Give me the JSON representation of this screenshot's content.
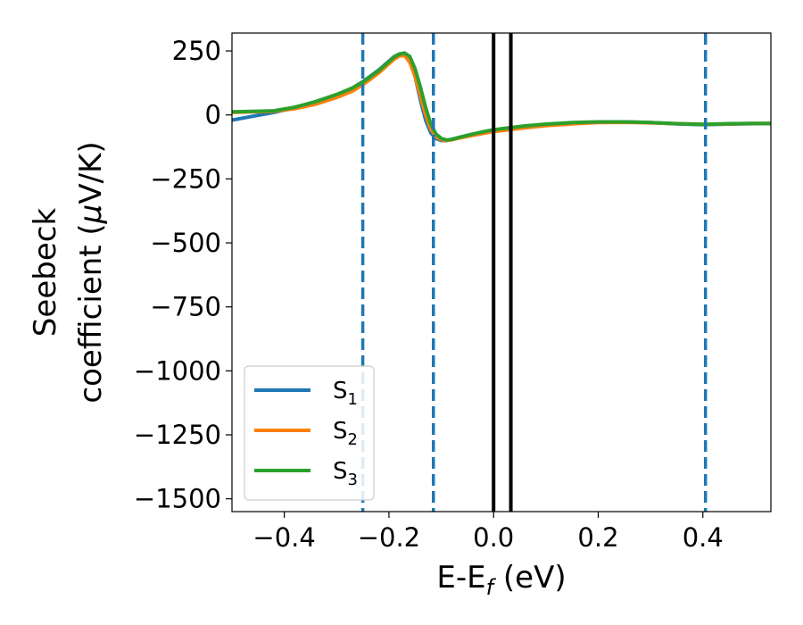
{
  "chart_data": {
    "type": "line",
    "xlabel": {
      "main": "E-E",
      "sub": "f",
      "unit": " (eV)"
    },
    "ylabel": {
      "line1": "Seebeck",
      "line2_pre": "coefficient  (",
      "line2_mu": "μ",
      "line2_post": "V/K)"
    },
    "xlim": [
      -0.5,
      0.53
    ],
    "ylim": [
      -1550,
      320
    ],
    "xticks": [
      -0.4,
      -0.2,
      0.0,
      0.2,
      0.4
    ],
    "xtick_labels": [
      "−0.4",
      "−0.2",
      "0.0",
      "0.2",
      "0.4"
    ],
    "yticks": [
      250,
      0,
      -250,
      -500,
      -750,
      -1000,
      -1250,
      -1500
    ],
    "ytick_labels": [
      "250",
      "0",
      "−250",
      "−500",
      "−750",
      "−1000",
      "−1250",
      "−1500"
    ],
    "grid": false,
    "legend_position": "lower-left",
    "series": [
      {
        "name": "S",
        "sub": "1",
        "color": "#1f77b4",
        "points": [
          [
            -0.5,
            -20
          ],
          [
            -0.46,
            -5
          ],
          [
            -0.42,
            10
          ],
          [
            -0.38,
            28
          ],
          [
            -0.34,
            50
          ],
          [
            -0.3,
            78
          ],
          [
            -0.27,
            105
          ],
          [
            -0.25,
            130
          ],
          [
            -0.22,
            175
          ],
          [
            -0.2,
            210
          ],
          [
            -0.19,
            228
          ],
          [
            -0.18,
            238
          ],
          [
            -0.17,
            240
          ],
          [
            -0.16,
            215
          ],
          [
            -0.15,
            150
          ],
          [
            -0.14,
            60
          ],
          [
            -0.13,
            -20
          ],
          [
            -0.12,
            -70
          ],
          [
            -0.11,
            -92
          ],
          [
            -0.1,
            -100
          ],
          [
            -0.09,
            -100
          ],
          [
            -0.08,
            -95
          ],
          [
            -0.06,
            -85
          ],
          [
            -0.04,
            -75
          ],
          [
            -0.02,
            -68
          ],
          [
            0.0,
            -60
          ],
          [
            0.03,
            -52
          ],
          [
            0.06,
            -45
          ],
          [
            0.1,
            -38
          ],
          [
            0.15,
            -32
          ],
          [
            0.2,
            -28
          ],
          [
            0.25,
            -27
          ],
          [
            0.3,
            -30
          ],
          [
            0.35,
            -35
          ],
          [
            0.4,
            -38
          ],
          [
            0.45,
            -36
          ],
          [
            0.5,
            -34
          ],
          [
            0.53,
            -34
          ]
        ]
      },
      {
        "name": "S",
        "sub": "2",
        "color": "#ff7f0e",
        "points": [
          [
            -0.5,
            10
          ],
          [
            -0.46,
            12
          ],
          [
            -0.42,
            14
          ],
          [
            -0.38,
            24
          ],
          [
            -0.34,
            42
          ],
          [
            -0.3,
            68
          ],
          [
            -0.27,
            93
          ],
          [
            -0.25,
            118
          ],
          [
            -0.22,
            163
          ],
          [
            -0.2,
            200
          ],
          [
            -0.19,
            218
          ],
          [
            -0.18,
            230
          ],
          [
            -0.17,
            232
          ],
          [
            -0.16,
            205
          ],
          [
            -0.15,
            150
          ],
          [
            -0.14,
            75
          ],
          [
            -0.13,
            0
          ],
          [
            -0.12,
            -55
          ],
          [
            -0.11,
            -85
          ],
          [
            -0.1,
            -97
          ],
          [
            -0.09,
            -100
          ],
          [
            -0.08,
            -97
          ],
          [
            -0.06,
            -88
          ],
          [
            -0.04,
            -80
          ],
          [
            -0.02,
            -72
          ],
          [
            0.0,
            -65
          ],
          [
            0.03,
            -58
          ],
          [
            0.06,
            -50
          ],
          [
            0.1,
            -42
          ],
          [
            0.15,
            -35
          ],
          [
            0.2,
            -30
          ],
          [
            0.25,
            -29
          ],
          [
            0.3,
            -31
          ],
          [
            0.35,
            -34
          ],
          [
            0.4,
            -37
          ],
          [
            0.45,
            -35
          ],
          [
            0.5,
            -33
          ],
          [
            0.53,
            -33
          ]
        ]
      },
      {
        "name": "S",
        "sub": "3",
        "color": "#2ca02c",
        "points": [
          [
            -0.5,
            12
          ],
          [
            -0.46,
            14
          ],
          [
            -0.42,
            16
          ],
          [
            -0.38,
            30
          ],
          [
            -0.34,
            52
          ],
          [
            -0.3,
            80
          ],
          [
            -0.27,
            105
          ],
          [
            -0.25,
            128
          ],
          [
            -0.22,
            172
          ],
          [
            -0.2,
            208
          ],
          [
            -0.19,
            226
          ],
          [
            -0.18,
            238
          ],
          [
            -0.17,
            242
          ],
          [
            -0.16,
            228
          ],
          [
            -0.15,
            180
          ],
          [
            -0.14,
            110
          ],
          [
            -0.13,
            30
          ],
          [
            -0.12,
            -35
          ],
          [
            -0.11,
            -75
          ],
          [
            -0.1,
            -92
          ],
          [
            -0.09,
            -98
          ],
          [
            -0.08,
            -96
          ],
          [
            -0.06,
            -85
          ],
          [
            -0.04,
            -75
          ],
          [
            -0.02,
            -66
          ],
          [
            0.0,
            -58
          ],
          [
            0.03,
            -50
          ],
          [
            0.06,
            -43
          ],
          [
            0.1,
            -36
          ],
          [
            0.15,
            -30
          ],
          [
            0.2,
            -27
          ],
          [
            0.25,
            -27
          ],
          [
            0.3,
            -30
          ],
          [
            0.35,
            -34
          ],
          [
            0.4,
            -37
          ],
          [
            0.45,
            -34
          ],
          [
            0.5,
            -33
          ],
          [
            0.53,
            -33
          ]
        ]
      }
    ],
    "vlines_dashed": {
      "color": "#1f77b4",
      "x": [
        -0.25,
        -0.115,
        0.405
      ]
    },
    "vlines_solid": {
      "color": "#000000",
      "x": [
        0.0,
        0.033
      ]
    }
  }
}
